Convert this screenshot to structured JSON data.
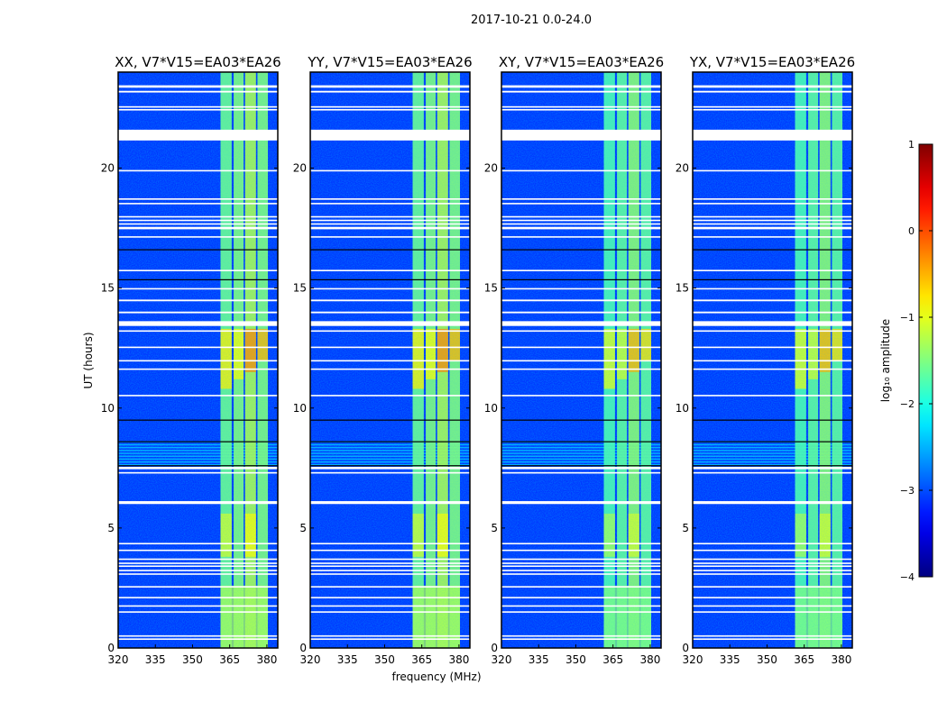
{
  "chart_data": {
    "type": "heatmap",
    "title": "2017-10-21 0.0-24.0",
    "xlabel": "frequency (MHz)",
    "ylabel": "UT (hours)",
    "xlim": [
      320,
      384.4
    ],
    "ylim": [
      0,
      24
    ],
    "xticks": [
      "320",
      "335",
      "350",
      "365",
      "380"
    ],
    "xtick_values": [
      320,
      335,
      350,
      365,
      380
    ],
    "yticks": [
      "0",
      "5",
      "10",
      "15",
      "20"
    ],
    "ytick_values": [
      0,
      5,
      10,
      15,
      20
    ],
    "panels": [
      {
        "title": "XX, V7*V15=EA03*EA26"
      },
      {
        "title": "YY, V7*V15=EA03*EA26"
      },
      {
        "title": "XY, V7*V15=EA03*EA26"
      },
      {
        "title": "YX, V7*V15=EA03*EA26"
      }
    ],
    "background_level": -3.1,
    "bands": [
      {
        "f0": 361.3,
        "f1": 365.8,
        "level": -1.6
      },
      {
        "f0": 366.6,
        "f1": 370.6,
        "level": -1.5
      },
      {
        "f0": 371.2,
        "f1": 375.6,
        "level": -1.3
      },
      {
        "f0": 376.2,
        "f1": 380.4,
        "level": -1.5
      }
    ],
    "hot_regions": [
      {
        "f0": 361.3,
        "f1": 365.8,
        "t0": 10.8,
        "t1": 13.3,
        "level": -0.8
      },
      {
        "f0": 366.6,
        "f1": 370.6,
        "t0": 11.2,
        "t1": 13.3,
        "level": -0.9
      },
      {
        "f0": 371.2,
        "f1": 375.6,
        "t0": 11.5,
        "t1": 13.3,
        "level": -0.3
      },
      {
        "f0": 376.2,
        "f1": 380.4,
        "t0": 12.0,
        "t1": 13.3,
        "level": -0.5
      },
      {
        "f0": 361.3,
        "f1": 365.8,
        "t0": 3.8,
        "t1": 5.6,
        "level": -1.1
      },
      {
        "f0": 371.2,
        "f1": 375.6,
        "t0": 3.8,
        "t1": 5.6,
        "level": -0.9
      },
      {
        "f0": 361.3,
        "f1": 380.4,
        "t0": 0.0,
        "t1": 2.6,
        "level": -1.3
      }
    ],
    "flagged_times": [
      {
        "t0": 23.35,
        "t1": 23.45
      },
      {
        "t0": 23.15,
        "t1": 23.22
      },
      {
        "t0": 22.52,
        "t1": 22.58
      },
      {
        "t0": 22.4,
        "t1": 22.46
      },
      {
        "t0": 21.15,
        "t1": 21.6
      },
      {
        "t0": 19.86,
        "t1": 19.92
      },
      {
        "t0": 18.68,
        "t1": 18.74
      },
      {
        "t0": 18.5,
        "t1": 18.55
      },
      {
        "t0": 17.95,
        "t1": 18.0
      },
      {
        "t0": 17.8,
        "t1": 17.85
      },
      {
        "t0": 17.65,
        "t1": 17.7
      },
      {
        "t0": 17.45,
        "t1": 17.55
      },
      {
        "t0": 17.1,
        "t1": 17.16
      },
      {
        "t0": 15.7,
        "t1": 15.76
      },
      {
        "t0": 14.95,
        "t1": 15.0
      },
      {
        "t0": 14.45,
        "t1": 14.52
      },
      {
        "t0": 13.95,
        "t1": 14.02
      },
      {
        "t0": 13.42,
        "t1": 13.62
      },
      {
        "t0": 13.18,
        "t1": 13.24
      },
      {
        "t0": 12.5,
        "t1": 12.56
      },
      {
        "t0": 11.95,
        "t1": 12.0
      },
      {
        "t0": 11.6,
        "t1": 11.65
      },
      {
        "t0": 10.5,
        "t1": 10.55
      },
      {
        "t0": 7.45,
        "t1": 7.55
      },
      {
        "t0": 7.28,
        "t1": 7.33
      },
      {
        "t0": 6.0,
        "t1": 6.12
      },
      {
        "t0": 4.32,
        "t1": 4.38
      },
      {
        "t0": 4.05,
        "t1": 4.1
      },
      {
        "t0": 3.68,
        "t1": 3.73
      },
      {
        "t0": 3.52,
        "t1": 3.56
      },
      {
        "t0": 3.4,
        "t1": 3.44
      },
      {
        "t0": 3.22,
        "t1": 3.26
      },
      {
        "t0": 3.07,
        "t1": 3.11
      },
      {
        "t0": 2.52,
        "t1": 2.58
      },
      {
        "t0": 2.08,
        "t1": 2.13
      },
      {
        "t0": 1.74,
        "t1": 1.78
      },
      {
        "t0": 1.48,
        "t1": 1.53
      },
      {
        "t0": 0.48,
        "t1": 0.53
      },
      {
        "t0": 0.36,
        "t1": 0.4
      }
    ],
    "dark_lines": [
      16.6,
      15.35,
      9.5,
      8.6,
      7.6
    ],
    "striped_region": {
      "t0": 7.6,
      "t1": 8.6
    },
    "colorbar": {
      "label": "log₁₀ amplitude",
      "colormap": "jet",
      "range": [
        -4,
        1
      ],
      "ticks": [
        "1",
        "0",
        "−1",
        "−2",
        "−3",
        "−4"
      ],
      "tick_values": [
        1,
        0,
        -1,
        -2,
        -3,
        -4
      ]
    }
  }
}
